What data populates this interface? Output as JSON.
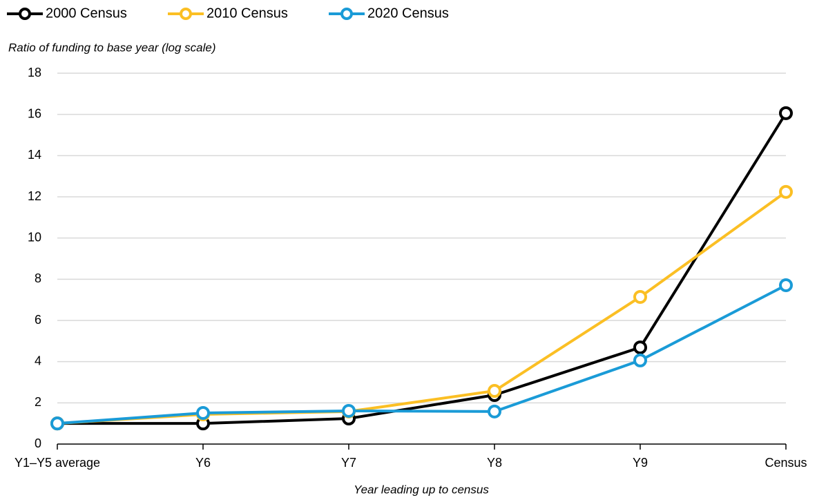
{
  "chart_data": {
    "type": "line",
    "y_axis_label": "Ratio of funding to base year (log scale)",
    "x_axis_label": "Year leading up to census",
    "categories": [
      "Y1–Y5 average",
      "Y6",
      "Y7",
      "Y8",
      "Y9",
      "Census"
    ],
    "series": [
      {
        "name": "2000 Census",
        "color": "#000000",
        "values": [
          1.0,
          1.0,
          1.24,
          2.38,
          4.69,
          16.06
        ]
      },
      {
        "name": "2010 Census",
        "color": "#fbbf24",
        "values": [
          1.0,
          1.44,
          1.58,
          2.58,
          7.14,
          12.24
        ]
      },
      {
        "name": "2020 Census",
        "color": "#1a9bd7",
        "values": [
          1.0,
          1.51,
          1.61,
          1.58,
          4.06,
          7.71
        ]
      }
    ],
    "ylim": [
      0,
      18
    ],
    "yticks": [
      0,
      2,
      4,
      6,
      8,
      10,
      12,
      14,
      16,
      18
    ],
    "grid": true,
    "legend": "top"
  }
}
